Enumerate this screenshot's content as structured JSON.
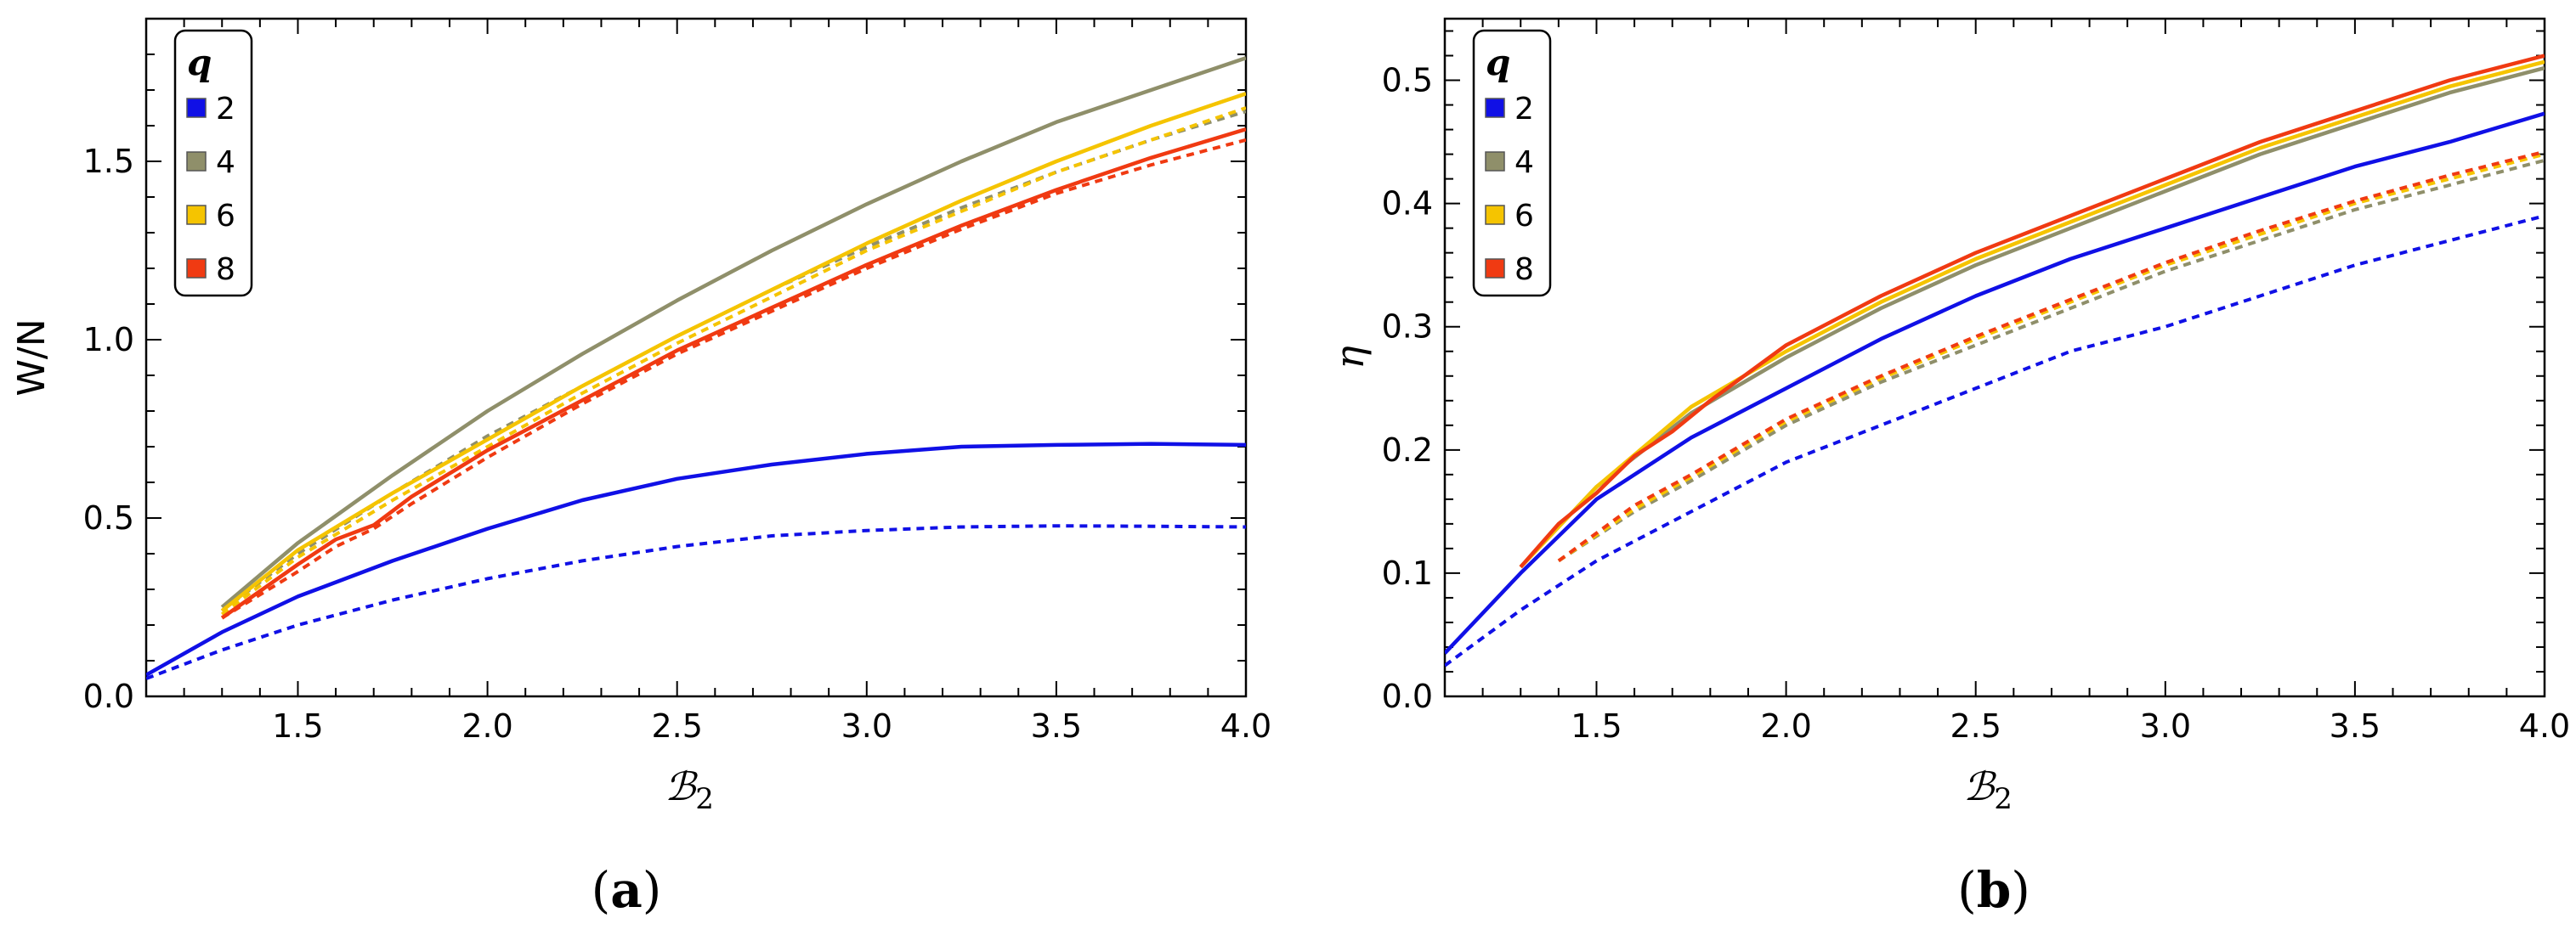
{
  "colors": {
    "q2": "#1010e6",
    "q4": "#8f8f6a",
    "q6": "#f5c400",
    "q8": "#f03a12",
    "frame": "#000000"
  },
  "chart_data": [
    {
      "type": "line",
      "panel": "a",
      "panel_label": "a",
      "xlabel": "ℬ",
      "xlabel_sub": "2",
      "ylabel": "W/N",
      "xlim": [
        1.1,
        4.0
      ],
      "ylim": [
        0.0,
        1.9
      ],
      "xticks": [
        1.5,
        2.0,
        2.5,
        3.0,
        3.5,
        4.0
      ],
      "xtick_labels": [
        "1.5",
        "2.0",
        "2.5",
        "3.0",
        "3.5",
        "4.0"
      ],
      "yticks": [
        0.0,
        0.5,
        1.0,
        1.5
      ],
      "ytick_labels": [
        "0.0",
        "0.5",
        "1.0",
        "1.5"
      ],
      "legend": {
        "title": "q",
        "position": "top-left",
        "entries": [
          "2",
          "4",
          "6",
          "8"
        ]
      },
      "series": [
        {
          "name": "2",
          "color_key": "q2",
          "style": "solid",
          "x": [
            1.1,
            1.3,
            1.5,
            1.75,
            2.0,
            2.25,
            2.5,
            2.75,
            3.0,
            3.25,
            3.5,
            3.75,
            4.0
          ],
          "y": [
            0.06,
            0.18,
            0.28,
            0.38,
            0.47,
            0.55,
            0.61,
            0.65,
            0.68,
            0.7,
            0.705,
            0.708,
            0.705
          ]
        },
        {
          "name": "2",
          "color_key": "q2",
          "style": "dashed",
          "x": [
            1.1,
            1.3,
            1.5,
            1.75,
            2.0,
            2.25,
            2.5,
            2.75,
            3.0,
            3.25,
            3.5,
            3.75,
            4.0
          ],
          "y": [
            0.05,
            0.13,
            0.2,
            0.27,
            0.33,
            0.38,
            0.42,
            0.45,
            0.465,
            0.475,
            0.478,
            0.477,
            0.475
          ]
        },
        {
          "name": "4",
          "color_key": "q4",
          "style": "solid",
          "x": [
            1.3,
            1.5,
            1.75,
            2.0,
            2.25,
            2.5,
            2.75,
            3.0,
            3.25,
            3.5,
            3.75,
            4.0
          ],
          "y": [
            0.25,
            0.43,
            0.62,
            0.8,
            0.96,
            1.11,
            1.25,
            1.38,
            1.5,
            1.61,
            1.7,
            1.79
          ]
        },
        {
          "name": "4",
          "color_key": "q4",
          "style": "dashed",
          "x": [
            1.3,
            1.5,
            1.75,
            2.0,
            2.25,
            2.5,
            2.75,
            3.0,
            3.25,
            3.5,
            3.75,
            4.0
          ],
          "y": [
            0.24,
            0.4,
            0.57,
            0.73,
            0.87,
            1.01,
            1.14,
            1.26,
            1.37,
            1.47,
            1.56,
            1.64
          ]
        },
        {
          "name": "6",
          "color_key": "q6",
          "style": "solid",
          "x": [
            1.3,
            1.5,
            1.75,
            2.0,
            2.25,
            2.5,
            2.75,
            3.0,
            3.25,
            3.5,
            3.75,
            4.0
          ],
          "y": [
            0.24,
            0.41,
            0.57,
            0.72,
            0.87,
            1.01,
            1.14,
            1.27,
            1.39,
            1.5,
            1.6,
            1.69
          ]
        },
        {
          "name": "6",
          "color_key": "q6",
          "style": "dashed",
          "x": [
            1.3,
            1.5,
            1.75,
            2.0,
            2.25,
            2.5,
            2.75,
            3.0,
            3.25,
            3.5,
            3.75,
            4.0
          ],
          "y": [
            0.23,
            0.39,
            0.55,
            0.7,
            0.85,
            0.99,
            1.12,
            1.25,
            1.36,
            1.47,
            1.56,
            1.65
          ]
        },
        {
          "name": "8",
          "color_key": "q8",
          "style": "solid",
          "x": [
            1.3,
            1.5,
            1.6,
            1.7,
            1.8,
            2.0,
            2.25,
            2.5,
            2.75,
            3.0,
            3.25,
            3.5,
            3.75,
            4.0
          ],
          "y": [
            0.22,
            0.37,
            0.44,
            0.48,
            0.56,
            0.69,
            0.83,
            0.97,
            1.09,
            1.21,
            1.32,
            1.42,
            1.51,
            1.59
          ]
        },
        {
          "name": "8",
          "color_key": "q8",
          "style": "dashed",
          "x": [
            1.3,
            1.5,
            1.6,
            1.7,
            1.8,
            2.0,
            2.25,
            2.5,
            2.75,
            3.0,
            3.25,
            3.5,
            3.75,
            4.0
          ],
          "y": [
            0.22,
            0.35,
            0.42,
            0.47,
            0.54,
            0.67,
            0.82,
            0.96,
            1.08,
            1.2,
            1.31,
            1.41,
            1.49,
            1.56
          ]
        }
      ]
    },
    {
      "type": "line",
      "panel": "b",
      "panel_label": "b",
      "xlabel": "ℬ",
      "xlabel_sub": "2",
      "ylabel": "η",
      "xlim": [
        1.1,
        4.0
      ],
      "ylim": [
        0.0,
        0.55
      ],
      "xticks": [
        1.5,
        2.0,
        2.5,
        3.0,
        3.5,
        4.0
      ],
      "xtick_labels": [
        "1.5",
        "2.0",
        "2.5",
        "3.0",
        "3.5",
        "4.0"
      ],
      "yticks": [
        0.0,
        0.1,
        0.2,
        0.3,
        0.4,
        0.5
      ],
      "ytick_labels": [
        "0.0",
        "0.1",
        "0.2",
        "0.3",
        "0.4",
        "0.5"
      ],
      "legend": {
        "title": "q",
        "position": "top-left",
        "entries": [
          "2",
          "4",
          "6",
          "8"
        ]
      },
      "series": [
        {
          "name": "2",
          "color_key": "q2",
          "style": "solid",
          "x": [
            1.1,
            1.3,
            1.5,
            1.75,
            2.0,
            2.25,
            2.5,
            2.75,
            3.0,
            3.25,
            3.5,
            3.75,
            4.0
          ],
          "y": [
            0.035,
            0.1,
            0.16,
            0.21,
            0.25,
            0.29,
            0.325,
            0.355,
            0.38,
            0.405,
            0.43,
            0.45,
            0.473
          ]
        },
        {
          "name": "2",
          "color_key": "q2",
          "style": "dashed",
          "x": [
            1.1,
            1.3,
            1.5,
            1.75,
            2.0,
            2.25,
            2.5,
            2.75,
            3.0,
            3.25,
            3.5,
            3.75,
            4.0
          ],
          "y": [
            0.025,
            0.07,
            0.11,
            0.15,
            0.19,
            0.22,
            0.25,
            0.28,
            0.3,
            0.325,
            0.35,
            0.37,
            0.39
          ]
        },
        {
          "name": "4",
          "color_key": "q4",
          "style": "solid",
          "x": [
            1.3,
            1.5,
            1.75,
            2.0,
            2.25,
            2.5,
            2.75,
            3.0,
            3.25,
            3.5,
            3.75,
            4.0
          ],
          "y": [
            0.105,
            0.17,
            0.23,
            0.275,
            0.315,
            0.35,
            0.38,
            0.41,
            0.44,
            0.465,
            0.49,
            0.51
          ]
        },
        {
          "name": "4",
          "color_key": "q4",
          "style": "dashed",
          "x": [
            1.4,
            1.6,
            1.75,
            2.0,
            2.25,
            2.5,
            2.75,
            3.0,
            3.25,
            3.5,
            3.75,
            4.0
          ],
          "y": [
            0.11,
            0.15,
            0.175,
            0.22,
            0.255,
            0.285,
            0.315,
            0.345,
            0.37,
            0.395,
            0.415,
            0.435
          ]
        },
        {
          "name": "6",
          "color_key": "q6",
          "style": "solid",
          "x": [
            1.3,
            1.5,
            1.75,
            2.0,
            2.25,
            2.5,
            2.75,
            3.0,
            3.25,
            3.5,
            3.75,
            4.0
          ],
          "y": [
            0.105,
            0.17,
            0.235,
            0.28,
            0.32,
            0.355,
            0.385,
            0.415,
            0.445,
            0.47,
            0.495,
            0.515
          ]
        },
        {
          "name": "6",
          "color_key": "q6",
          "style": "dashed",
          "x": [
            1.4,
            1.6,
            1.75,
            2.0,
            2.25,
            2.5,
            2.75,
            3.0,
            3.25,
            3.5,
            3.75,
            4.0
          ],
          "y": [
            0.11,
            0.152,
            0.178,
            0.223,
            0.258,
            0.29,
            0.32,
            0.35,
            0.375,
            0.4,
            0.42,
            0.44
          ]
        },
        {
          "name": "8",
          "color_key": "q8",
          "style": "solid",
          "x": [
            1.3,
            1.4,
            1.5,
            1.6,
            1.7,
            1.8,
            2.0,
            2.25,
            2.5,
            2.75,
            3.0,
            3.25,
            3.5,
            3.75,
            4.0
          ],
          "y": [
            0.105,
            0.14,
            0.165,
            0.195,
            0.215,
            0.24,
            0.285,
            0.325,
            0.36,
            0.39,
            0.42,
            0.45,
            0.475,
            0.5,
            0.52
          ]
        },
        {
          "name": "8",
          "color_key": "q8",
          "style": "dashed",
          "x": [
            1.4,
            1.6,
            1.75,
            2.0,
            2.25,
            2.5,
            2.75,
            3.0,
            3.25,
            3.5,
            3.75,
            4.0
          ],
          "y": [
            0.11,
            0.155,
            0.18,
            0.225,
            0.26,
            0.292,
            0.322,
            0.352,
            0.378,
            0.402,
            0.423,
            0.442
          ]
        }
      ]
    }
  ]
}
